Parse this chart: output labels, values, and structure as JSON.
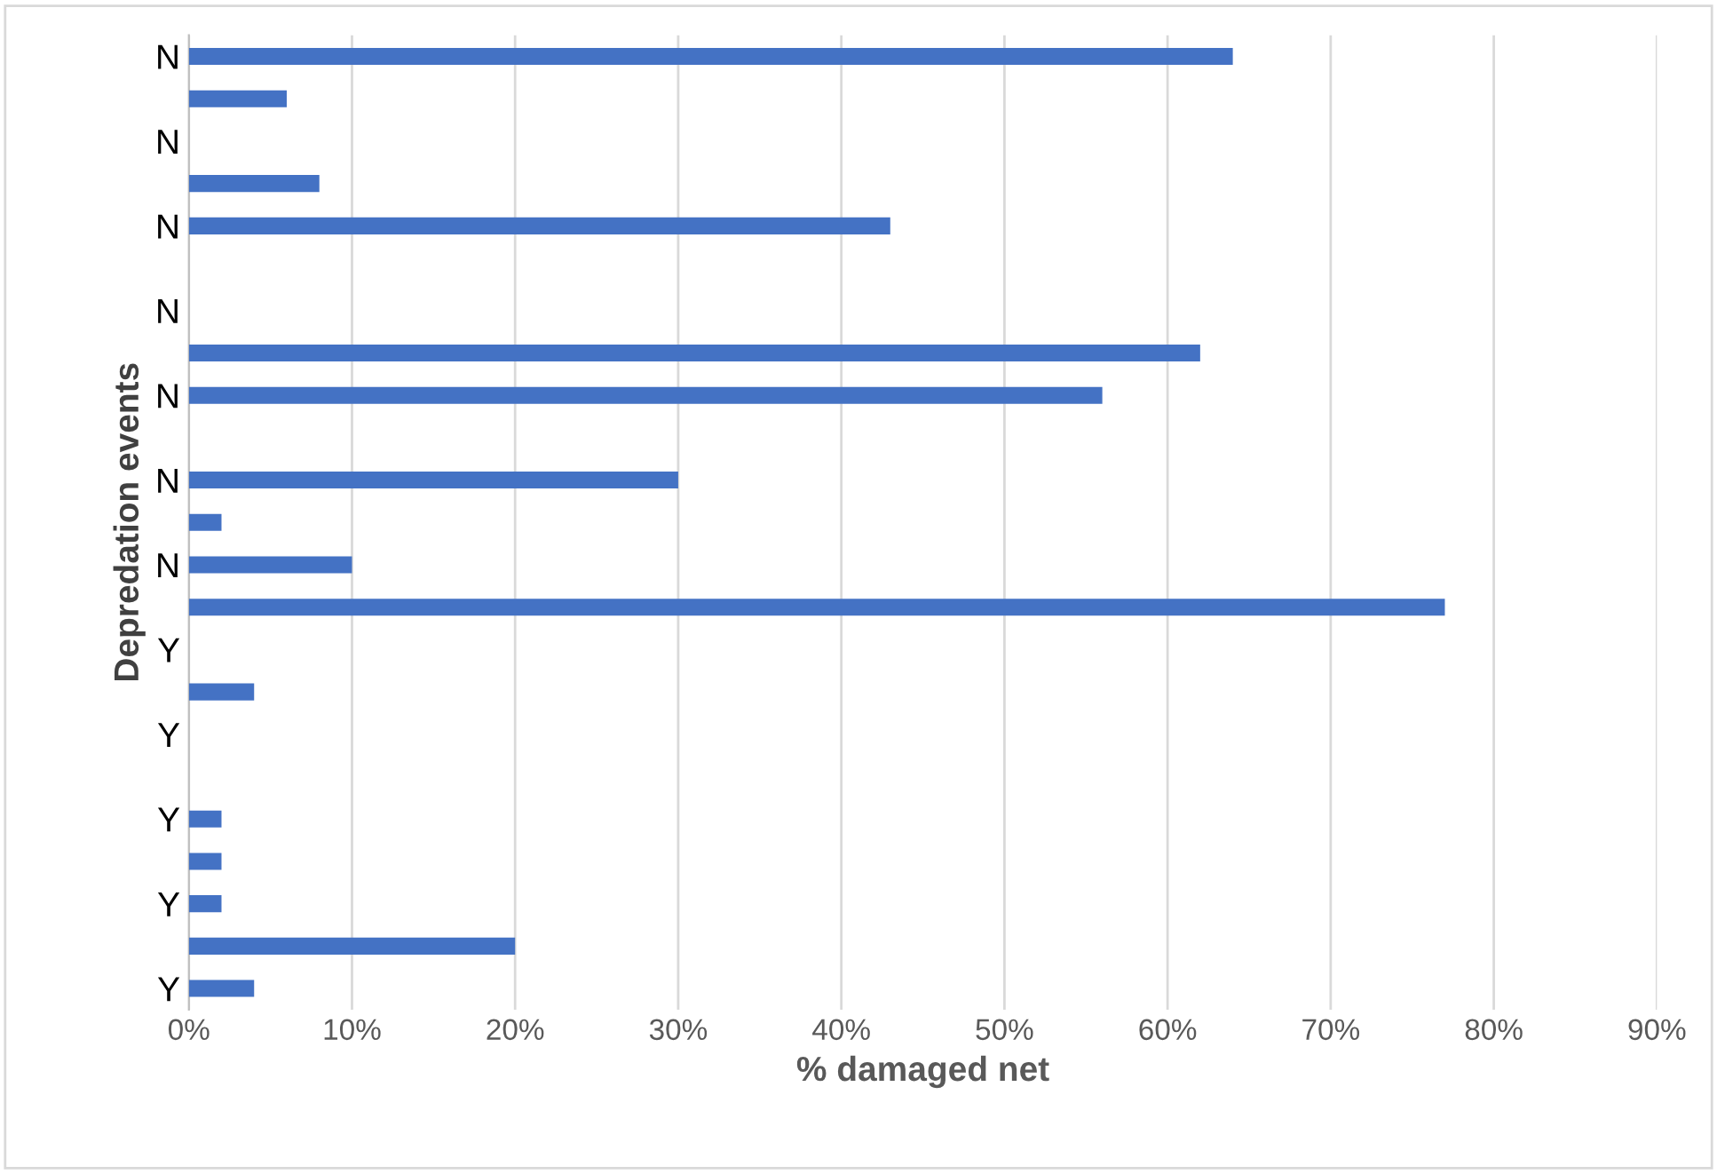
{
  "chart_data": {
    "type": "bar",
    "orientation": "horizontal",
    "xlabel": "% damaged net",
    "ylabel": "Depredation events",
    "categories": [
      "N",
      null,
      "N",
      null,
      "N",
      null,
      "N",
      null,
      "N",
      null,
      "N",
      null,
      "N",
      null,
      "Y",
      null,
      "Y",
      null,
      "Y",
      null,
      "Y",
      null,
      "Y"
    ],
    "values": [
      64,
      6,
      0,
      8,
      43,
      0,
      0,
      62,
      56,
      0,
      30,
      2,
      10,
      77,
      0,
      4,
      0,
      0,
      2,
      2,
      2,
      20,
      4
    ],
    "color": "#4472c4",
    "xlim": [
      0,
      90
    ],
    "xticks": [
      {
        "value": 0,
        "label": "0%"
      },
      {
        "value": 10,
        "label": "10%"
      },
      {
        "value": 20,
        "label": "20%"
      },
      {
        "value": 30,
        "label": "30%"
      },
      {
        "value": 40,
        "label": "40%"
      },
      {
        "value": 50,
        "label": "50%"
      },
      {
        "value": 60,
        "label": "60%"
      },
      {
        "value": 70,
        "label": "70%"
      },
      {
        "value": 80,
        "label": "80%"
      },
      {
        "value": 90,
        "label": "90%"
      }
    ],
    "grid": "x"
  }
}
